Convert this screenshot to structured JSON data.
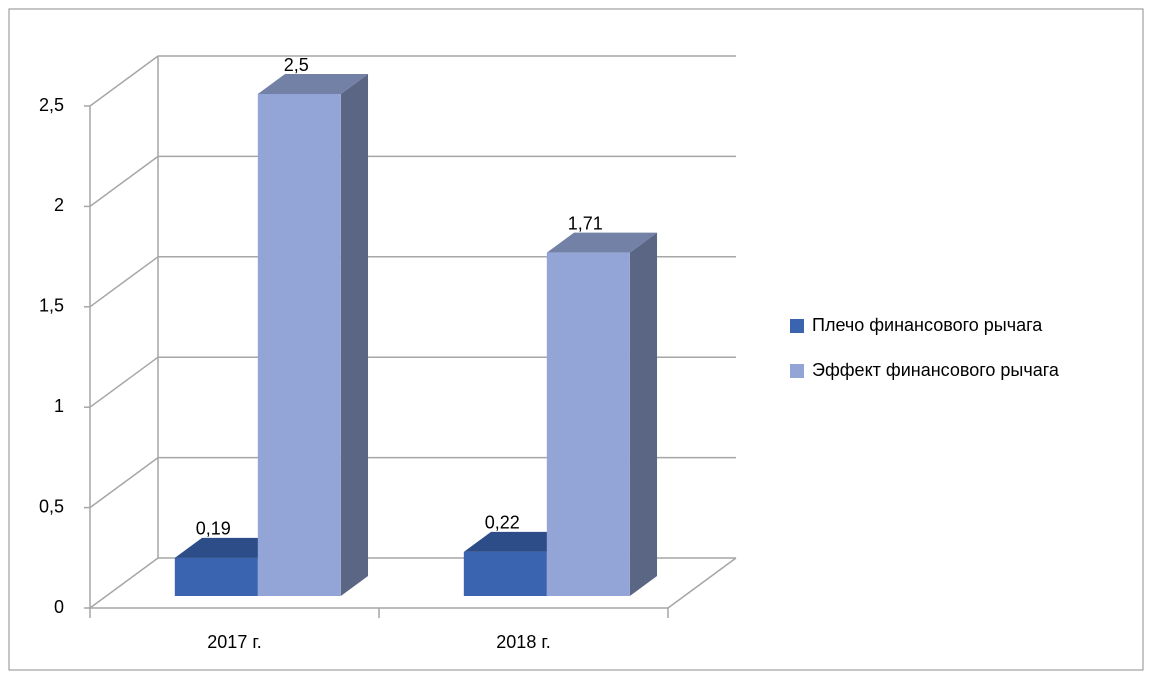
{
  "chart_data": {
    "type": "bar3d",
    "categories": [
      "2017 г.",
      "2018 г."
    ],
    "series": [
      {
        "name": "Плечо финансового рычага",
        "color": "#3a63b0",
        "values": [
          0.19,
          0.22
        ],
        "value_labels": [
          "0,19",
          "0,22"
        ]
      },
      {
        "name": "Эффект финансового рычага",
        "color": "#93a5d6",
        "values": [
          2.5,
          1.71
        ],
        "value_labels": [
          "2,5",
          "1,71"
        ]
      }
    ],
    "ylim": [
      0,
      2.5
    ],
    "yticks": [
      0,
      {
        "value": 0.5,
        "label": "0,5"
      },
      1,
      {
        "value": 1.5,
        "label": "1,5"
      },
      2,
      {
        "value": 2.5,
        "label": "2,5"
      }
    ],
    "grid": true,
    "legend": "right"
  }
}
